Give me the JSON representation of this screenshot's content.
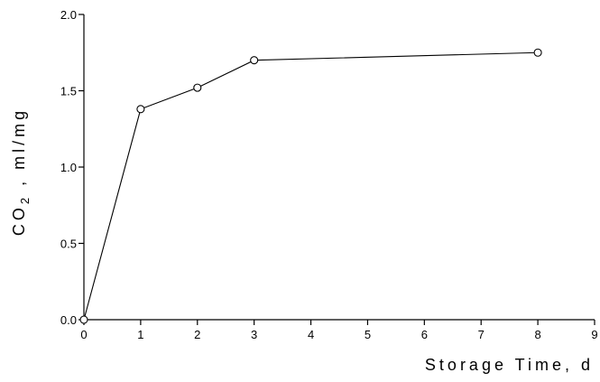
{
  "chart_data": {
    "type": "line",
    "title": "",
    "xlabel": "Storage Time, d",
    "ylabel": {
      "prefix": "CO",
      "subscript": "2",
      "suffix": " , ml/mg"
    },
    "xlim": [
      0,
      9
    ],
    "ylim": [
      0.0,
      2.0
    ],
    "x_ticks": [
      "0",
      "1",
      "2",
      "3",
      "4",
      "5",
      "6",
      "7",
      "8",
      "9"
    ],
    "y_ticks": [
      "0.0",
      "0.5",
      "1.0",
      "1.5",
      "2.0"
    ],
    "grid": false,
    "legend": "none",
    "series": [
      {
        "x": [
          0,
          1,
          2,
          3,
          8
        ],
        "y": [
          0.0,
          1.38,
          1.52,
          1.7,
          1.75
        ]
      }
    ]
  }
}
